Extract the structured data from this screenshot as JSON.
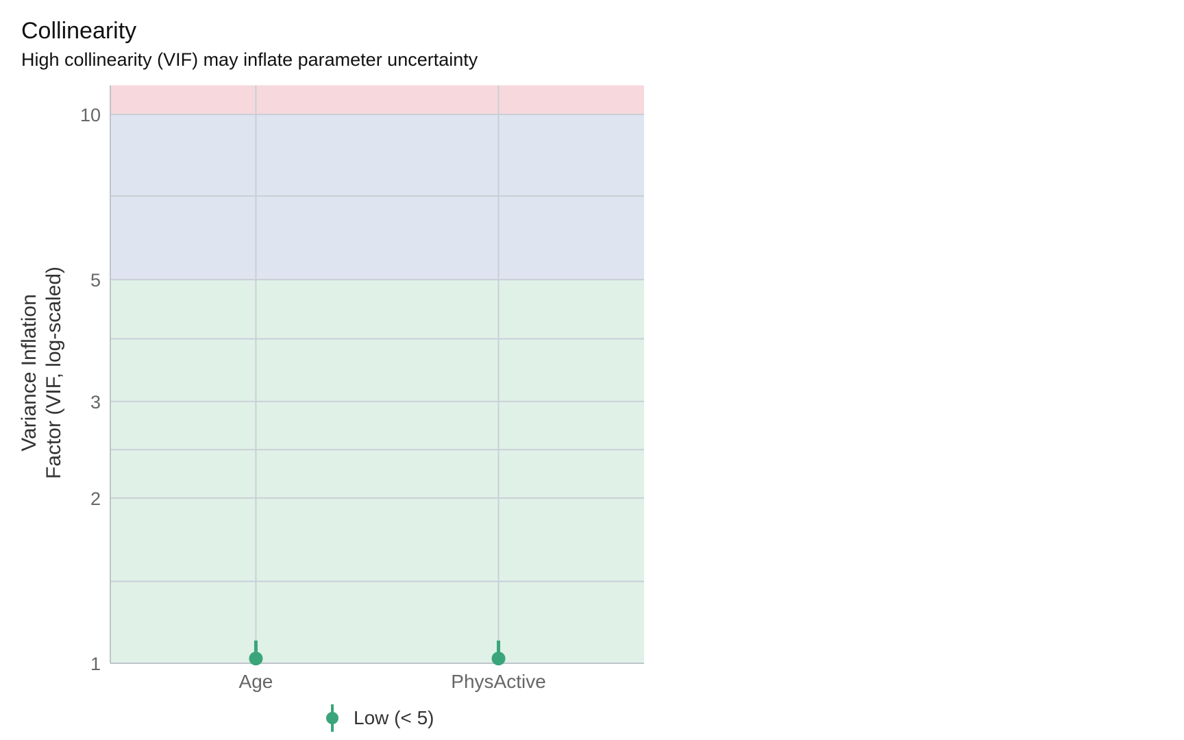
{
  "chart_data": {
    "type": "scatter",
    "title": "Collinearity",
    "subtitle": "High collinearity (VIF) may inflate parameter uncertainty",
    "ylabel_lines": [
      "Variance Inflation",
      "Factor (VIF, log-scaled)"
    ],
    "y_scale": "log",
    "ylim": [
      1,
      11.3
    ],
    "y_ticks": [
      1,
      2,
      3,
      5,
      10
    ],
    "y_minor_gridlines": [
      1.41,
      2.45,
      3.9,
      7.1
    ],
    "categories": [
      "Age",
      "PhysActive"
    ],
    "series": [
      {
        "name": "Low (< 5)",
        "color": "#3aa57a",
        "points": [
          {
            "x": "Age",
            "y": 1.02,
            "ci_low": 1.0,
            "ci_high": 1.1
          },
          {
            "x": "PhysActive",
            "y": 1.02,
            "ci_low": 1.0,
            "ci_high": 1.1
          }
        ]
      }
    ],
    "bands": [
      {
        "from": 1,
        "to": 5,
        "color": "#e0f1e8"
      },
      {
        "from": 5,
        "to": 10,
        "color": "#dfe5f0"
      },
      {
        "from": 10,
        "to": 11.3,
        "color": "#f6d8dd"
      }
    ],
    "grid": true,
    "legend": {
      "position": "bottom",
      "label": "Low (< 5)"
    }
  }
}
